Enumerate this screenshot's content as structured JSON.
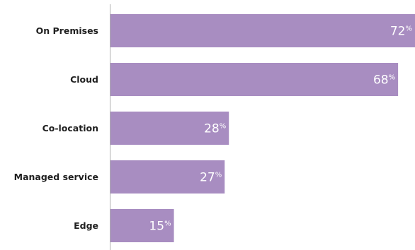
{
  "chart_data": {
    "type": "bar",
    "orientation": "horizontal",
    "categories": [
      "On Premises",
      "Cloud",
      "Co-location",
      "Managed service",
      "Edge"
    ],
    "values": [
      72,
      68,
      28,
      27,
      15
    ],
    "value_suffix": "%",
    "xlim": [
      0,
      72
    ],
    "grid": false,
    "bar_color": "#a88dc1",
    "label_color": "#ffffff",
    "axis_color": "#b0b0b0"
  }
}
